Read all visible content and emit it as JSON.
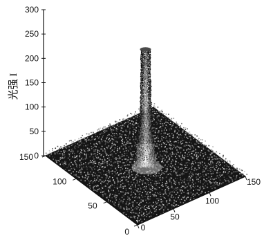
{
  "chart_data": {
    "type": "surface",
    "title": "",
    "zlabel": "光强 I",
    "x": {
      "range": [
        0,
        150
      ],
      "ticks": [
        "0",
        "50",
        "100",
        "150"
      ]
    },
    "y": {
      "range": [
        0,
        150
      ],
      "ticks": [
        "0",
        "50",
        "100",
        "150"
      ]
    },
    "z": {
      "range": [
        0,
        300
      ],
      "ticks": [
        "0",
        "50",
        "100",
        "150",
        "200",
        "250",
        "300"
      ]
    },
    "surface": {
      "peak_center": [
        75,
        75
      ],
      "peak_value": 240,
      "peak_shape": "narrow column",
      "background_level": 5,
      "noise": "speckle"
    },
    "colormap": "grayscale",
    "grid": false,
    "legend": "none"
  }
}
